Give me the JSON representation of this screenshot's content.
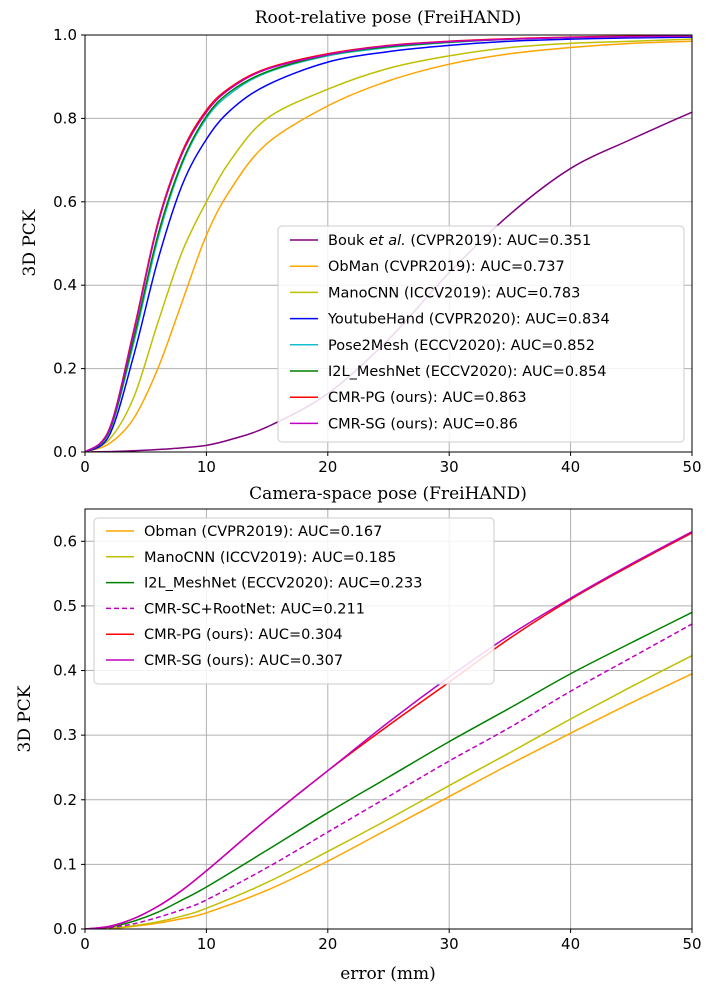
{
  "chart_data": [
    {
      "type": "line",
      "title": "Root-relative pose (FreiHAND)",
      "xlabel": "",
      "ylabel": "3D PCK",
      "xlim": [
        0,
        50
      ],
      "ylim": [
        0,
        1.0
      ],
      "xticks": [
        "0",
        "10",
        "20",
        "30",
        "40",
        "50"
      ],
      "yticks": [
        "0.0",
        "0.2",
        "0.4",
        "0.6",
        "0.8",
        "1.0"
      ],
      "grid": true,
      "legend_position": "lower-right",
      "x": [
        0,
        2,
        4,
        6,
        8,
        10,
        12,
        15,
        20,
        25,
        30,
        35,
        40,
        45,
        50
      ],
      "series": [
        {
          "name": "Bouk et al. (CVPR2019): AUC=0.351",
          "name_parts": [
            "Bouk ",
            "et al.",
            " (CVPR2019): AUC=0.351"
          ],
          "color": "#800080",
          "dash": false,
          "values": [
            0,
            0.001,
            0.003,
            0.006,
            0.01,
            0.016,
            0.03,
            0.06,
            0.14,
            0.27,
            0.43,
            0.57,
            0.68,
            0.75,
            0.815
          ]
        },
        {
          "name": "ObMan (CVPR2019): AUC=0.737",
          "color": "#FFA500",
          "dash": false,
          "values": [
            0,
            0.02,
            0.08,
            0.2,
            0.36,
            0.52,
            0.63,
            0.74,
            0.83,
            0.89,
            0.93,
            0.955,
            0.97,
            0.98,
            0.985
          ]
        },
        {
          "name": "ManoCNN (ICCV2019): AUC=0.783",
          "color": "#BFBF00",
          "dash": false,
          "values": [
            0,
            0.03,
            0.13,
            0.31,
            0.48,
            0.6,
            0.7,
            0.8,
            0.87,
            0.92,
            0.95,
            0.97,
            0.98,
            0.985,
            0.99
          ]
        },
        {
          "name": "YoutubeHand (CVPR2020): AUC=0.834",
          "color": "#0000FF",
          "dash": false,
          "values": [
            0,
            0.04,
            0.23,
            0.46,
            0.64,
            0.75,
            0.82,
            0.88,
            0.935,
            0.96,
            0.975,
            0.985,
            0.99,
            0.993,
            0.995
          ]
        },
        {
          "name": "Pose2Mesh (ECCV2020): AUC=0.852",
          "color": "#17BECF",
          "dash": false,
          "values": [
            0,
            0.05,
            0.26,
            0.51,
            0.69,
            0.8,
            0.86,
            0.91,
            0.95,
            0.97,
            0.982,
            0.99,
            0.994,
            0.996,
            0.998
          ]
        },
        {
          "name": "I2L_MeshNet (ECCV2020): AUC=0.854",
          "color": "#008000",
          "dash": false,
          "values": [
            0,
            0.05,
            0.27,
            0.52,
            0.695,
            0.805,
            0.865,
            0.912,
            0.952,
            0.972,
            0.983,
            0.99,
            0.994,
            0.996,
            0.998
          ]
        },
        {
          "name": "CMR-PG (ours): AUC=0.863",
          "color": "#FF0000",
          "dash": false,
          "values": [
            0,
            0.055,
            0.29,
            0.55,
            0.72,
            0.82,
            0.875,
            0.92,
            0.955,
            0.975,
            0.985,
            0.991,
            0.995,
            0.997,
            0.998
          ]
        },
        {
          "name": "CMR-SG (ours): AUC=0.86",
          "color": "#C000C0",
          "dash": false,
          "values": [
            0,
            0.054,
            0.285,
            0.545,
            0.715,
            0.815,
            0.872,
            0.918,
            0.953,
            0.974,
            0.984,
            0.99,
            0.994,
            0.996,
            0.998
          ]
        }
      ]
    },
    {
      "type": "line",
      "title": "Camera-space pose (FreiHAND)",
      "xlabel": "error (mm)",
      "ylabel": "3D PCK",
      "xlim": [
        0,
        50
      ],
      "ylim": [
        0,
        0.65
      ],
      "xticks": [
        "0",
        "10",
        "20",
        "30",
        "40",
        "50"
      ],
      "yticks": [
        "0.0",
        "0.1",
        "0.2",
        "0.3",
        "0.4",
        "0.5",
        "0.6"
      ],
      "grid": true,
      "legend_position": "upper-left",
      "x": [
        0,
        2,
        4,
        6,
        8,
        10,
        15,
        20,
        25,
        30,
        35,
        40,
        45,
        50
      ],
      "series": [
        {
          "name": "Obman (CVPR2019): AUC=0.167",
          "color": "#FFA500",
          "dash": false,
          "values": [
            0,
            0.001,
            0.004,
            0.009,
            0.016,
            0.025,
            0.06,
            0.105,
            0.155,
            0.205,
            0.255,
            0.303,
            0.35,
            0.395
          ]
        },
        {
          "name": "ManoCNN (ICCV2019): AUC=0.185",
          "color": "#BFBF00",
          "dash": false,
          "values": [
            0,
            0.001,
            0.005,
            0.011,
            0.02,
            0.032,
            0.072,
            0.12,
            0.17,
            0.222,
            0.273,
            0.325,
            0.375,
            0.423
          ]
        },
        {
          "name": "I2L_MeshNet (ECCV2020): AUC=0.233",
          "color": "#008000",
          "dash": false,
          "values": [
            0,
            0.003,
            0.012,
            0.026,
            0.045,
            0.065,
            0.122,
            0.18,
            0.235,
            0.29,
            0.342,
            0.395,
            0.443,
            0.49
          ]
        },
        {
          "name": "CMR-SC+RootNet: AUC=0.211",
          "color": "#C000C0",
          "dash": true,
          "values": [
            0,
            0.002,
            0.008,
            0.018,
            0.03,
            0.045,
            0.095,
            0.15,
            0.205,
            0.26,
            0.312,
            0.368,
            0.42,
            0.472
          ]
        },
        {
          "name": "CMR-PG (ours): AUC=0.304",
          "color": "#FF0000",
          "dash": false,
          "values": [
            0,
            0.004,
            0.016,
            0.035,
            0.06,
            0.09,
            0.17,
            0.245,
            0.315,
            0.382,
            0.45,
            0.51,
            0.563,
            0.613
          ]
        },
        {
          "name": "CMR-SG (ours): AUC=0.307",
          "color": "#C000C0",
          "dash": false,
          "values": [
            0,
            0.004,
            0.016,
            0.035,
            0.06,
            0.09,
            0.17,
            0.245,
            0.32,
            0.39,
            0.455,
            0.512,
            0.565,
            0.615
          ]
        }
      ]
    }
  ]
}
